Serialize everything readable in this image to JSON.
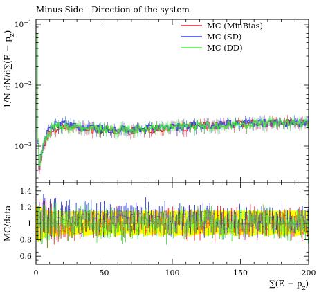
{
  "chart_data": [
    {
      "type": "line",
      "panel": "main",
      "title": "Minus Side - Direction of the system",
      "xlabel": "",
      "ylabel": "1/N dN/d∑(E − pz)",
      "xlim": [
        0,
        200
      ],
      "ylim": [
        0.00025,
        0.12
      ],
      "yscale": "log",
      "yticks": [
        {
          "value": 0.001,
          "mantissa": "10",
          "exponent": "−3"
        },
        {
          "value": 0.01,
          "mantissa": "10",
          "exponent": "−2"
        },
        {
          "value": 0.1,
          "mantissa": "10",
          "exponent": "−1"
        }
      ],
      "legend_position": "top-right",
      "x": [
        0.5,
        1.5,
        2.5,
        3.5,
        5,
        7,
        9,
        12,
        15,
        20,
        25,
        30,
        40,
        50,
        60,
        70,
        80,
        90,
        100,
        110,
        120,
        130,
        140,
        150,
        160,
        170,
        180,
        190,
        200
      ],
      "series": [
        {
          "name": "MC (MinBias)",
          "color": "#e8212b",
          "values": [
            0.06,
            0.0012,
            0.00045,
            0.0006,
            0.0009,
            0.0012,
            0.0015,
            0.0018,
            0.002,
            0.0021,
            0.0021,
            0.002,
            0.0019,
            0.0018,
            0.0018,
            0.0018,
            0.0019,
            0.0019,
            0.002,
            0.002,
            0.0021,
            0.0022,
            0.0022,
            0.0023,
            0.0023,
            0.0024,
            0.0024,
            0.0024,
            0.0024
          ]
        },
        {
          "name": "MC (SD)",
          "color": "#2f3ee8",
          "values": [
            0.05,
            0.0011,
            0.0005,
            0.0007,
            0.001,
            0.0014,
            0.0017,
            0.0021,
            0.0023,
            0.0023,
            0.0022,
            0.0021,
            0.002,
            0.0019,
            0.0019,
            0.0019,
            0.002,
            0.002,
            0.0021,
            0.0021,
            0.0022,
            0.0022,
            0.0023,
            0.0023,
            0.0024,
            0.0024,
            0.0024,
            0.0024,
            0.0025
          ]
        },
        {
          "name": "MC (DD)",
          "color": "#3ee83a",
          "values": [
            0.07,
            0.0013,
            0.0005,
            0.00065,
            0.00095,
            0.0013,
            0.0016,
            0.002,
            0.0022,
            0.0022,
            0.0021,
            0.002,
            0.0019,
            0.0019,
            0.0018,
            0.0019,
            0.0019,
            0.002,
            0.002,
            0.0021,
            0.0021,
            0.0022,
            0.0022,
            0.0023,
            0.0023,
            0.0024,
            0.0024,
            0.0024,
            0.0024
          ]
        }
      ]
    },
    {
      "type": "scatter",
      "panel": "ratio",
      "xlabel": "∑(E − pz)",
      "ylabel": "MC/data",
      "xlim": [
        0,
        200
      ],
      "ylim": [
        0.5,
        1.5
      ],
      "xticks": [
        0,
        50,
        100,
        150,
        200
      ],
      "yticks": [
        0.6,
        0.8,
        1,
        1.2,
        1.4
      ],
      "band": {
        "color": "#ffff00",
        "x": [
          0,
          10,
          20,
          50,
          100,
          150,
          200
        ],
        "low": [
          0.78,
          0.86,
          0.86,
          0.86,
          0.86,
          0.86,
          0.86
        ],
        "high": [
          1.22,
          1.15,
          1.15,
          1.15,
          1.15,
          1.15,
          1.15
        ]
      },
      "series": [
        {
          "name": "MC (MinBias)",
          "color": "#e8212b",
          "x": [
            0,
            25,
            50,
            75,
            100,
            125,
            150,
            175,
            200
          ],
          "values": [
            1.0,
            0.98,
            1.0,
            1.01,
            1.0,
            0.99,
            1.0,
            1.0,
            0.98
          ]
        },
        {
          "name": "MC (SD)",
          "color": "#2f3ee8",
          "x": [
            0,
            25,
            50,
            75,
            100,
            125,
            150,
            175,
            200
          ],
          "values": [
            1.05,
            1.08,
            1.05,
            1.1,
            1.05,
            1.04,
            1.03,
            1.02,
            1.03
          ]
        },
        {
          "name": "MC (DD)",
          "color": "#3ee83a",
          "x": [
            0,
            25,
            50,
            75,
            100,
            125,
            150,
            175,
            200
          ],
          "values": [
            1.0,
            1.0,
            0.97,
            1.0,
            0.98,
            1.0,
            1.0,
            1.0,
            1.0
          ]
        }
      ]
    }
  ]
}
